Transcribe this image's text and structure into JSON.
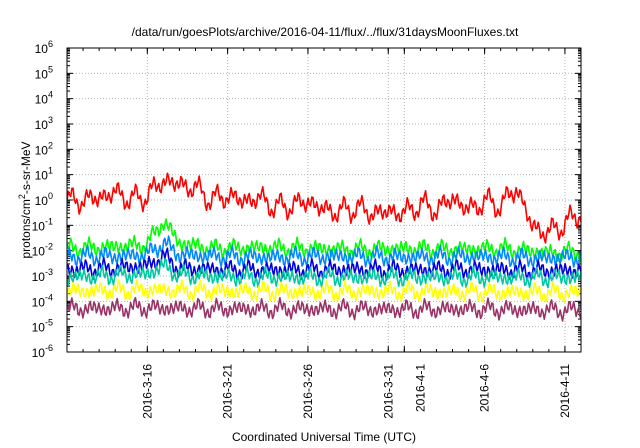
{
  "chart_data": {
    "type": "line",
    "title": "/data/run/goesPlots/archive/2016-04-11/flux/../flux/31daysMoonFluxes.txt",
    "xlabel": "Coordinated Universal Time (UTC)",
    "ylabel_parts": [
      "protons/cm",
      "2",
      "-s-sr-MeV"
    ],
    "y_scale": "log",
    "ylim": [
      1e-06,
      1000000.0
    ],
    "y_ticks": [
      {
        "base": "10",
        "exp": "-6",
        "value": 1e-06
      },
      {
        "base": "10",
        "exp": "-5",
        "value": 1e-05
      },
      {
        "base": "10",
        "exp": "-4",
        "value": 0.0001
      },
      {
        "base": "10",
        "exp": "-3",
        "value": 0.001
      },
      {
        "base": "10",
        "exp": "-2",
        "value": 0.01
      },
      {
        "base": "10",
        "exp": "-1",
        "value": 0.1
      },
      {
        "base": "10",
        "exp": "0",
        "value": 1
      },
      {
        "base": "10",
        "exp": "1",
        "value": 10
      },
      {
        "base": "10",
        "exp": "2",
        "value": 100
      },
      {
        "base": "10",
        "exp": "3",
        "value": 1000
      },
      {
        "base": "10",
        "exp": "4",
        "value": 10000
      },
      {
        "base": "10",
        "exp": "5",
        "value": 100000
      },
      {
        "base": "10",
        "exp": "6",
        "value": 1000000
      }
    ],
    "xlim": [
      "2016-03-11",
      "2016-04-12"
    ],
    "x_ticks": [
      "2016-3-16",
      "2016-3-21",
      "2016-3-26",
      "2016-3-31",
      "2016-4-1",
      "2016-4-6",
      "2016-4-11"
    ],
    "grid": true,
    "legend": "none",
    "series": [
      {
        "color": "#ff0000",
        "x": [
          "2016-03-11",
          "2016-03-12",
          "2016-03-13",
          "2016-03-14",
          "2016-03-15",
          "2016-03-16",
          "2016-03-17",
          "2016-03-18",
          "2016-03-19",
          "2016-03-20",
          "2016-03-21",
          "2016-03-22",
          "2016-03-23",
          "2016-03-24",
          "2016-03-25",
          "2016-03-26",
          "2016-03-27",
          "2016-03-28",
          "2016-03-29",
          "2016-03-30",
          "2016-03-31",
          "2016-04-01",
          "2016-04-02",
          "2016-04-03",
          "2016-04-04",
          "2016-04-05",
          "2016-04-06",
          "2016-04-07",
          "2016-04-08",
          "2016-04-09",
          "2016-04-10",
          "2016-04-11",
          "2016-04-12"
        ],
        "y": [
          0.9,
          1.0,
          1.2,
          2.0,
          1.0,
          1.5,
          6.0,
          4.0,
          3.0,
          1.0,
          1.5,
          0.9,
          1.2,
          0.5,
          0.6,
          0.9,
          0.4,
          0.35,
          0.5,
          0.3,
          0.35,
          0.3,
          0.7,
          0.4,
          1.2,
          0.4,
          0.9,
          0.6,
          3.0,
          0.08,
          0.05,
          0.12,
          0.3
        ]
      },
      {
        "color": "#00ff00",
        "x": [
          "2016-03-11",
          "2016-03-14",
          "2016-03-16",
          "2016-03-17",
          "2016-03-18",
          "2016-03-20",
          "2016-03-23",
          "2016-03-26",
          "2016-03-29",
          "2016-04-01",
          "2016-04-04",
          "2016-04-07",
          "2016-04-10",
          "2016-04-12"
        ],
        "y": [
          0.012,
          0.014,
          0.018,
          0.15,
          0.02,
          0.012,
          0.013,
          0.012,
          0.011,
          0.012,
          0.011,
          0.012,
          0.008,
          0.009
        ]
      },
      {
        "color": "#0088ff",
        "x": [
          "2016-03-11",
          "2016-03-14",
          "2016-03-16",
          "2016-03-17",
          "2016-03-18",
          "2016-03-20",
          "2016-03-24",
          "2016-03-28",
          "2016-04-01",
          "2016-04-05",
          "2016-04-09",
          "2016-04-12"
        ],
        "y": [
          0.006,
          0.006,
          0.007,
          0.02,
          0.007,
          0.006,
          0.0055,
          0.006,
          0.0055,
          0.006,
          0.005,
          0.0055
        ]
      },
      {
        "color": "#0000dd",
        "x": [
          "2016-03-11",
          "2016-03-14",
          "2016-03-16",
          "2016-03-17",
          "2016-03-18",
          "2016-03-20",
          "2016-03-24",
          "2016-03-28",
          "2016-04-01",
          "2016-04-05",
          "2016-04-09",
          "2016-04-12"
        ],
        "y": [
          0.0018,
          0.002,
          0.0025,
          0.006,
          0.002,
          0.0018,
          0.0017,
          0.0018,
          0.0017,
          0.0018,
          0.0016,
          0.0017
        ]
      },
      {
        "color": "#00c8a0",
        "x": [
          "2016-03-11",
          "2016-03-16",
          "2016-03-17",
          "2016-03-18",
          "2016-03-22",
          "2016-03-28",
          "2016-04-03",
          "2016-04-09",
          "2016-04-12"
        ],
        "y": [
          0.0009,
          0.0012,
          0.0025,
          0.0011,
          0.0009,
          0.0009,
          0.0009,
          0.00085,
          0.0009
        ]
      },
      {
        "color": "#ffff00",
        "x": [
          "2016-03-11",
          "2016-03-16",
          "2016-03-21",
          "2016-03-26",
          "2016-03-31",
          "2016-04-05",
          "2016-04-10",
          "2016-04-12"
        ],
        "y": [
          0.00025,
          0.00028,
          0.00025,
          0.00024,
          0.00025,
          0.00023,
          0.00022,
          0.00022
        ]
      },
      {
        "color": "#993366",
        "x": [
          "2016-03-11",
          "2016-03-16",
          "2016-03-21",
          "2016-03-26",
          "2016-03-31",
          "2016-04-05",
          "2016-04-10",
          "2016-04-12"
        ],
        "y": [
          5e-05,
          5.5e-05,
          5e-05,
          5e-05,
          4.8e-05,
          5e-05,
          4.5e-05,
          4.5e-05
        ]
      }
    ]
  }
}
